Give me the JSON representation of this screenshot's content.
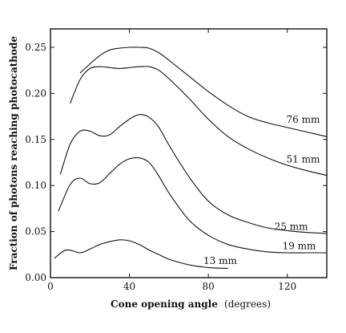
{
  "chart_data": {
    "type": "line",
    "title": "",
    "xlabel": "Cone opening angle",
    "xlabel_unit": "(degrees)",
    "ylabel": "Fraction of photons reaching photocathode",
    "xlim": [
      0,
      140
    ],
    "ylim": [
      0,
      0.27
    ],
    "x_ticks": [
      0,
      40,
      80,
      120
    ],
    "x_tick_labels": [
      "0",
      "40",
      "80",
      "120"
    ],
    "y_ticks": [
      0,
      0.05,
      0.1,
      0.15,
      0.2,
      0.25
    ],
    "y_tick_labels": [
      "0.00",
      "0.05",
      "0.10",
      "0.15",
      "0.20",
      "0.25"
    ],
    "grid": false,
    "legend": "inline labels",
    "series": [
      {
        "name": "76 mm",
        "x": [
          15,
          20,
          25,
          30,
          35,
          40,
          45,
          50,
          55,
          60,
          70,
          80,
          90,
          100,
          110,
          120,
          130,
          140
        ],
        "y": [
          0.222,
          0.232,
          0.241,
          0.247,
          0.249,
          0.25,
          0.25,
          0.249,
          0.244,
          0.236,
          0.219,
          0.202,
          0.187,
          0.175,
          0.168,
          0.163,
          0.158,
          0.153
        ]
      },
      {
        "name": "51 mm",
        "x": [
          10,
          15,
          20,
          25,
          30,
          35,
          40,
          45,
          50,
          55,
          60,
          70,
          80,
          90,
          100,
          110,
          120,
          130,
          140
        ],
        "y": [
          0.189,
          0.215,
          0.227,
          0.229,
          0.228,
          0.227,
          0.228,
          0.229,
          0.229,
          0.225,
          0.216,
          0.195,
          0.172,
          0.153,
          0.14,
          0.13,
          0.122,
          0.116,
          0.111
        ]
      },
      {
        "name": "25 mm",
        "x": [
          5,
          10,
          15,
          20,
          25,
          30,
          35,
          40,
          45,
          50,
          55,
          60,
          70,
          80,
          90,
          100,
          110,
          120,
          130,
          140
        ],
        "y": [
          0.112,
          0.145,
          0.159,
          0.159,
          0.154,
          0.155,
          0.164,
          0.172,
          0.177,
          0.174,
          0.163,
          0.144,
          0.11,
          0.083,
          0.068,
          0.06,
          0.054,
          0.051,
          0.049,
          0.048
        ]
      },
      {
        "name": "19 mm",
        "x": [
          4,
          10,
          15,
          20,
          25,
          30,
          35,
          40,
          45,
          50,
          55,
          60,
          70,
          80,
          90,
          100,
          110,
          120,
          130,
          140
        ],
        "y": [
          0.072,
          0.101,
          0.108,
          0.102,
          0.103,
          0.113,
          0.123,
          0.129,
          0.13,
          0.125,
          0.11,
          0.092,
          0.063,
          0.046,
          0.036,
          0.031,
          0.028,
          0.027,
          0.027,
          0.027
        ]
      },
      {
        "name": "13 mm",
        "x": [
          2,
          8,
          15,
          20,
          25,
          30,
          35,
          40,
          45,
          50,
          55,
          60,
          70,
          80,
          90
        ],
        "y": [
          0.021,
          0.03,
          0.027,
          0.031,
          0.036,
          0.039,
          0.041,
          0.04,
          0.036,
          0.03,
          0.025,
          0.02,
          0.014,
          0.011,
          0.01
        ]
      }
    ]
  }
}
